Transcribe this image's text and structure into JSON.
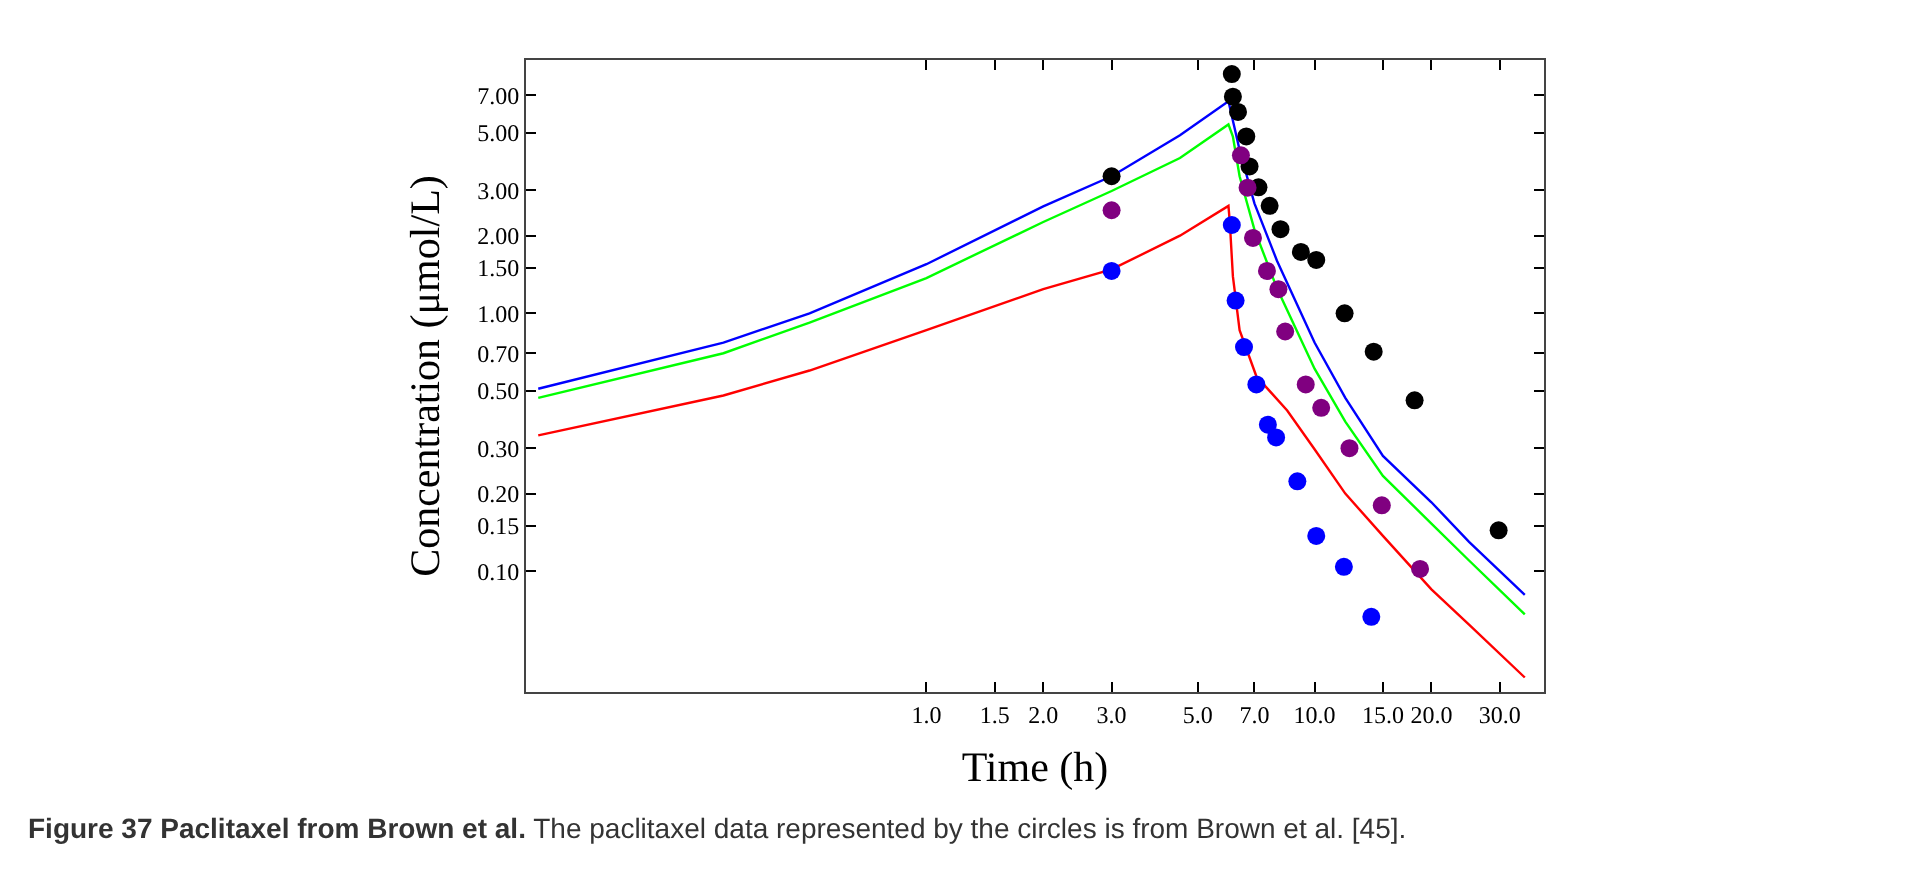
{
  "chart_data": {
    "type": "line",
    "xlabel": "Time (h)",
    "ylabel": "Concentration (μmol/L)",
    "log": "xy",
    "xlim": [
      0.093,
      39
    ],
    "ylim": [
      0.034,
      9.6
    ],
    "xticks": [
      {
        "value": 1,
        "label": "1.0"
      },
      {
        "value": 1.5,
        "label": "1.5"
      },
      {
        "value": 2,
        "label": "2.0"
      },
      {
        "value": 3,
        "label": "3.0"
      },
      {
        "value": 5,
        "label": "5.0"
      },
      {
        "value": 7,
        "label": "7.0"
      },
      {
        "value": 10,
        "label": "10.0"
      },
      {
        "value": 15,
        "label": "15.0"
      },
      {
        "value": 20,
        "label": "20.0"
      },
      {
        "value": 30,
        "label": "30.0"
      }
    ],
    "yticks": [
      {
        "value": 0.1,
        "label": "0.10"
      },
      {
        "value": 0.15,
        "label": "0.15"
      },
      {
        "value": 0.2,
        "label": "0.20"
      },
      {
        "value": 0.3,
        "label": "0.30"
      },
      {
        "value": 0.5,
        "label": "0.50"
      },
      {
        "value": 0.7,
        "label": "0.70"
      },
      {
        "value": 1,
        "label": "1.00"
      },
      {
        "value": 1.5,
        "label": "1.50"
      },
      {
        "value": 2,
        "label": "2.00"
      },
      {
        "value": 3,
        "label": "3.00"
      },
      {
        "value": 5,
        "label": "5.00"
      },
      {
        "value": 7,
        "label": "7.00"
      }
    ],
    "series": [
      {
        "color": "#0000ff",
        "x": [
          0.1,
          0.3,
          0.5,
          1,
          2,
          3,
          4.5,
          6,
          6.41,
          7,
          8,
          10,
          12,
          15,
          20,
          25,
          34.8
        ],
        "values": [
          0.51,
          0.77,
          1.0,
          1.55,
          2.6,
          3.4,
          4.9,
          6.64,
          4.3,
          2.67,
          1.6,
          0.77,
          0.47,
          0.28,
          0.185,
          0.13,
          0.081
        ]
      },
      {
        "color": "#00ff00",
        "x": [
          0.1,
          0.3,
          0.5,
          1,
          2,
          3,
          4.5,
          6,
          6.16,
          6.41,
          7,
          8,
          10,
          12,
          15,
          20,
          25,
          34.8
        ],
        "values": [
          0.47,
          0.7,
          0.92,
          1.37,
          2.26,
          2.98,
          4.0,
          5.4,
          4.85,
          3.4,
          2.11,
          1.25,
          0.61,
          0.38,
          0.234,
          0.153,
          0.11,
          0.068
        ]
      },
      {
        "color": "#ff0000",
        "x": [
          0.1,
          0.3,
          0.5,
          1,
          2,
          3,
          4.5,
          6,
          6.05,
          6.16,
          6.41,
          7.08,
          8.5,
          10,
          12,
          15,
          20,
          25,
          34.8
        ],
        "values": [
          0.336,
          0.48,
          0.6,
          0.86,
          1.24,
          1.48,
          2.0,
          2.61,
          2.24,
          1.39,
          0.86,
          0.57,
          0.42,
          0.297,
          0.2,
          0.137,
          0.085,
          0.062,
          0.0387
        ]
      },
      {
        "type": "scatter",
        "color": "#000000",
        "marker": "circle",
        "x": [
          3.0,
          6.12,
          6.16,
          6.35,
          6.67,
          6.8,
          7.17,
          7.66,
          8.17,
          9.22,
          10.1,
          11.95,
          14.2,
          18.1,
          29.8
        ],
        "values": [
          3.4,
          8.47,
          6.92,
          6.04,
          4.85,
          3.71,
          3.08,
          2.61,
          2.12,
          1.73,
          1.61,
          1.0,
          0.71,
          0.46,
          0.144
        ]
      },
      {
        "type": "scatter",
        "color": "#800080",
        "marker": "circle",
        "x": [
          3.0,
          6.46,
          6.72,
          6.94,
          7.54,
          8.07,
          8.4,
          9.49,
          10.4,
          12.3,
          14.9,
          18.7
        ],
        "values": [
          2.51,
          4.1,
          3.07,
          1.96,
          1.46,
          1.24,
          0.85,
          0.53,
          0.43,
          0.3,
          0.18,
          0.102
        ]
      },
      {
        "type": "scatter",
        "color": "#0000ff",
        "marker": "circle",
        "x": [
          3.0,
          6.12,
          6.26,
          6.58,
          7.08,
          7.58,
          7.96,
          9.03,
          10.1,
          11.9,
          14.0
        ],
        "values": [
          1.46,
          2.2,
          1.12,
          0.74,
          0.53,
          0.37,
          0.33,
          0.223,
          0.137,
          0.104,
          0.0665
        ]
      }
    ],
    "annotations": [
      "Figure 37 Paclitaxel from Brown et al.",
      "The paclitaxel data represented by the circles is from Brown et al. [45]."
    ]
  }
}
